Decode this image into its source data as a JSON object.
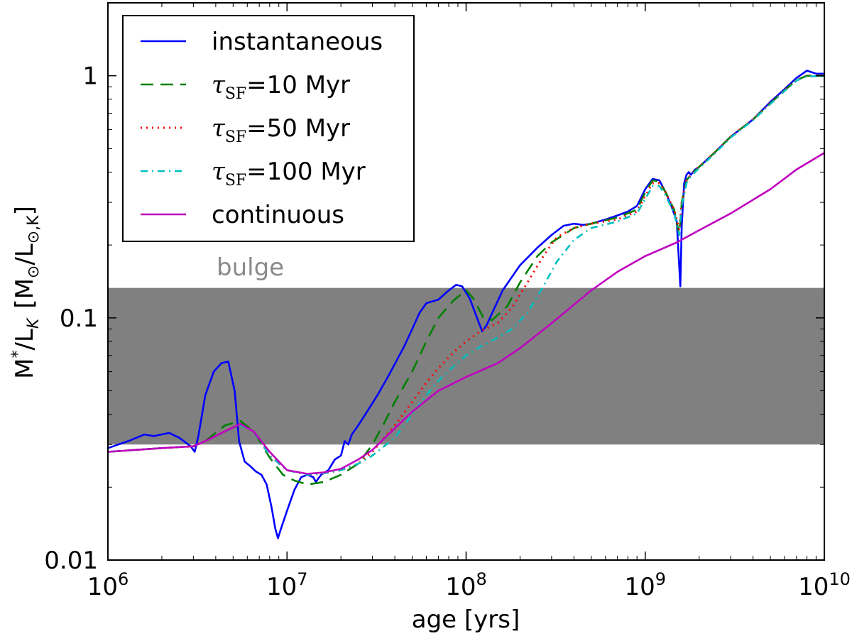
{
  "chart_data": {
    "type": "line",
    "xscale": "log",
    "yscale": "log",
    "xlim": [
      1000000,
      10000000000
    ],
    "ylim": [
      0.01,
      2
    ],
    "xlabel": "age [yrs]",
    "ylabel": {
      "text": "M*/LK [M⊙/L⊙,K]",
      "main": "M",
      "main_sub": "*",
      "ratio": "/L",
      "ratio_sub": "K",
      "bracket_open": "[M",
      "bracket_sub": "⊙",
      "bracket_mid": "/L",
      "bracket_sub2": "⊙,K",
      "bracket_close": "]"
    },
    "x_ticks": [
      {
        "value": 1000000,
        "base": "10",
        "exp": "6"
      },
      {
        "value": 10000000,
        "base": "10",
        "exp": "7"
      },
      {
        "value": 100000000,
        "base": "10",
        "exp": "8"
      },
      {
        "value": 1000000000,
        "base": "10",
        "exp": "9"
      },
      {
        "value": 10000000000,
        "base": "10",
        "exp": "10"
      }
    ],
    "y_ticks": [
      {
        "value": 0.01,
        "label": "0.01"
      },
      {
        "value": 0.1,
        "label": "0.1"
      },
      {
        "value": 1,
        "label": "1"
      }
    ],
    "band": {
      "label": "bulge",
      "ymin": 0.03,
      "ymax": 0.133,
      "color": "#808080"
    },
    "series": [
      {
        "name": "instantaneous",
        "legend_prefix": "",
        "legend_sub": "",
        "legend_suffix": "instantaneous",
        "color": "#0000ff",
        "dash": "",
        "width": 2.6,
        "x": [
          1000000,
          1300000,
          1600000,
          1800000,
          2200000,
          2500000,
          2900000,
          3050000,
          3200000,
          3500000,
          3900000,
          4300000,
          4700000,
          5100000,
          5400000,
          5800000,
          6200000,
          6700000,
          7200000,
          7700000,
          8200000,
          8600000,
          8900000,
          9200000,
          10000000,
          11000000,
          12000000,
          13000000,
          14000000,
          14500000,
          15000000,
          15500000,
          17000000,
          18500000,
          20000000,
          21000000,
          22000000,
          23000000,
          25000000,
          28000000,
          32000000,
          37000000,
          45000000,
          50000000,
          55000000,
          60000000,
          70000000,
          80000000,
          88000000,
          95000000,
          105000000,
          115000000,
          123000000,
          130000000,
          140000000,
          160000000,
          200000000,
          250000000,
          300000000,
          350000000,
          400000000,
          450000000,
          500000000,
          600000000,
          700000000,
          800000000,
          900000000,
          1000000000,
          1100000000,
          1200000000,
          1300000000,
          1400000000,
          1500000000,
          1570000000,
          1600000000,
          1650000000,
          1700000000,
          1750000000,
          1800000000,
          1900000000,
          2000000000,
          2500000000,
          3000000000,
          4000000000,
          5000000000,
          6000000000,
          7000000000,
          8000000000,
          9000000000,
          10000000000
        ],
        "y": [
          0.029,
          0.031,
          0.033,
          0.0325,
          0.0335,
          0.032,
          0.0295,
          0.028,
          0.0325,
          0.048,
          0.06,
          0.065,
          0.066,
          0.05,
          0.031,
          0.0255,
          0.0245,
          0.0232,
          0.0225,
          0.0205,
          0.0165,
          0.0135,
          0.0123,
          0.0133,
          0.016,
          0.0195,
          0.022,
          0.0225,
          0.022,
          0.021,
          0.0218,
          0.0225,
          0.0235,
          0.026,
          0.027,
          0.031,
          0.03,
          0.033,
          0.036,
          0.041,
          0.048,
          0.058,
          0.076,
          0.09,
          0.105,
          0.115,
          0.119,
          0.13,
          0.137,
          0.135,
          0.12,
          0.1,
          0.088,
          0.093,
          0.105,
          0.13,
          0.165,
          0.195,
          0.22,
          0.24,
          0.245,
          0.242,
          0.245,
          0.255,
          0.265,
          0.275,
          0.29,
          0.34,
          0.375,
          0.37,
          0.33,
          0.29,
          0.25,
          0.135,
          0.24,
          0.36,
          0.39,
          0.4,
          0.39,
          0.41,
          0.42,
          0.49,
          0.56,
          0.66,
          0.78,
          0.88,
          0.98,
          1.05,
          1.02,
          1.02
        ]
      },
      {
        "name": "τSF=10 Myr",
        "legend_prefix": "τ",
        "legend_sub": "SF",
        "legend_suffix": "=10 Myr",
        "color": "#008000",
        "dash": "18,10",
        "width": 2.6,
        "x": [
          1000000,
          2000000,
          3000000,
          3500000,
          4500000,
          5500000,
          6500000,
          8000000,
          9500000,
          11000000,
          13000000,
          16000000,
          20000000,
          25000000,
          30000000,
          35000000,
          40000000,
          50000000,
          60000000,
          70000000,
          85000000,
          100000000,
          110000000,
          125000000,
          140000000,
          170000000,
          200000000,
          250000000,
          300000000,
          400000000,
          500000000,
          700000000,
          900000000,
          1000000000,
          1100000000,
          1200000000,
          1300000000,
          1450000000,
          1550000000,
          1600000000,
          1700000000,
          1800000000,
          2000000000,
          2500000000,
          3000000000,
          4000000000,
          5000000000,
          6000000000,
          7000000000,
          8000000000,
          9000000000,
          10000000000
        ],
        "y": [
          0.028,
          0.029,
          0.0295,
          0.031,
          0.036,
          0.0375,
          0.034,
          0.0265,
          0.0225,
          0.0213,
          0.0205,
          0.021,
          0.0225,
          0.025,
          0.03,
          0.037,
          0.045,
          0.06,
          0.08,
          0.1,
          0.118,
          0.13,
          0.12,
          0.1,
          0.098,
          0.112,
          0.14,
          0.18,
          0.205,
          0.235,
          0.245,
          0.26,
          0.28,
          0.33,
          0.37,
          0.365,
          0.33,
          0.28,
          0.22,
          0.3,
          0.37,
          0.39,
          0.42,
          0.49,
          0.56,
          0.66,
          0.77,
          0.87,
          0.96,
          1.0,
          1.0,
          1.0
        ]
      },
      {
        "name": "τSF=50 Myr",
        "legend_prefix": "τ",
        "legend_sub": "SF",
        "legend_suffix": "=50 Myr",
        "color": "#ff0000",
        "dash": "2,6",
        "width": 3,
        "x": [
          1000000,
          2000000,
          3000000,
          3500000,
          4500000,
          5500000,
          6500000,
          8000000,
          10000000,
          13000000,
          16000000,
          20000000,
          25000000,
          30000000,
          40000000,
          50000000,
          60000000,
          70000000,
          85000000,
          100000000,
          120000000,
          150000000,
          180000000,
          220000000,
          270000000,
          320000000,
          400000000,
          500000000,
          700000000,
          900000000,
          1000000000,
          1100000000,
          1200000000,
          1300000000,
          1450000000,
          1550000000,
          1600000000,
          1700000000,
          1800000000,
          2000000000,
          2500000000,
          3000000000,
          4000000000,
          5000000000,
          6000000000,
          7000000000,
          8000000000,
          9000000000,
          10000000000
        ],
        "y": [
          0.028,
          0.029,
          0.0295,
          0.031,
          0.034,
          0.036,
          0.034,
          0.027,
          0.0235,
          0.0225,
          0.0228,
          0.0235,
          0.025,
          0.028,
          0.036,
          0.045,
          0.054,
          0.062,
          0.072,
          0.08,
          0.088,
          0.095,
          0.11,
          0.14,
          0.18,
          0.215,
          0.235,
          0.245,
          0.255,
          0.275,
          0.32,
          0.36,
          0.36,
          0.33,
          0.28,
          0.23,
          0.3,
          0.37,
          0.39,
          0.42,
          0.49,
          0.56,
          0.66,
          0.77,
          0.87,
          0.96,
          1.0,
          1.0,
          1.0
        ]
      },
      {
        "name": "τSF=100 Myr",
        "legend_prefix": "τ",
        "legend_sub": "SF",
        "legend_suffix": "=100 Myr",
        "color": "#00bfbf",
        "dash": "10,6,2,6",
        "width": 2.6,
        "x": [
          1000000,
          2000000,
          3000000,
          3500000,
          4500000,
          5500000,
          6500000,
          8000000,
          10000000,
          13000000,
          16000000,
          20000000,
          25000000,
          30000000,
          40000000,
          50000000,
          60000000,
          70000000,
          85000000,
          100000000,
          120000000,
          150000000,
          180000000,
          220000000,
          270000000,
          320000000,
          400000000,
          500000000,
          700000000,
          900000000,
          1000000000,
          1100000000,
          1200000000,
          1300000000,
          1450000000,
          1550000000,
          1600000000,
          1700000000,
          1800000000,
          2000000000,
          2500000000,
          3000000000,
          4000000000,
          5000000000,
          6000000000,
          7000000000,
          8000000000,
          9000000000,
          10000000000
        ],
        "y": [
          0.028,
          0.029,
          0.0295,
          0.031,
          0.034,
          0.036,
          0.034,
          0.027,
          0.0235,
          0.0225,
          0.0228,
          0.0235,
          0.025,
          0.027,
          0.032,
          0.04,
          0.048,
          0.055,
          0.063,
          0.07,
          0.076,
          0.083,
          0.09,
          0.105,
          0.135,
          0.17,
          0.21,
          0.235,
          0.25,
          0.27,
          0.31,
          0.35,
          0.35,
          0.32,
          0.27,
          0.22,
          0.29,
          0.36,
          0.385,
          0.415,
          0.485,
          0.555,
          0.655,
          0.765,
          0.865,
          0.955,
          0.995,
          0.995,
          0.995
        ]
      },
      {
        "name": "continuous",
        "legend_prefix": "",
        "legend_sub": "",
        "legend_suffix": "continuous",
        "color": "#bf00bf",
        "dash": "",
        "width": 2.6,
        "x": [
          1000000,
          2000000,
          3000000,
          3500000,
          4500000,
          5500000,
          6500000,
          8000000,
          10000000,
          13000000,
          16000000,
          20000000,
          25000000,
          30000000,
          40000000,
          50000000,
          70000000,
          100000000,
          150000000,
          200000000,
          300000000,
          500000000,
          700000000,
          1000000000,
          1500000000,
          2000000000,
          3000000000,
          5000000000,
          7000000000,
          10000000000
        ],
        "y": [
          0.028,
          0.029,
          0.0295,
          0.031,
          0.034,
          0.0365,
          0.034,
          0.028,
          0.0235,
          0.0227,
          0.023,
          0.0238,
          0.026,
          0.0285,
          0.035,
          0.041,
          0.05,
          0.057,
          0.065,
          0.075,
          0.095,
          0.13,
          0.155,
          0.18,
          0.205,
          0.23,
          0.27,
          0.34,
          0.41,
          0.48
        ]
      }
    ]
  }
}
